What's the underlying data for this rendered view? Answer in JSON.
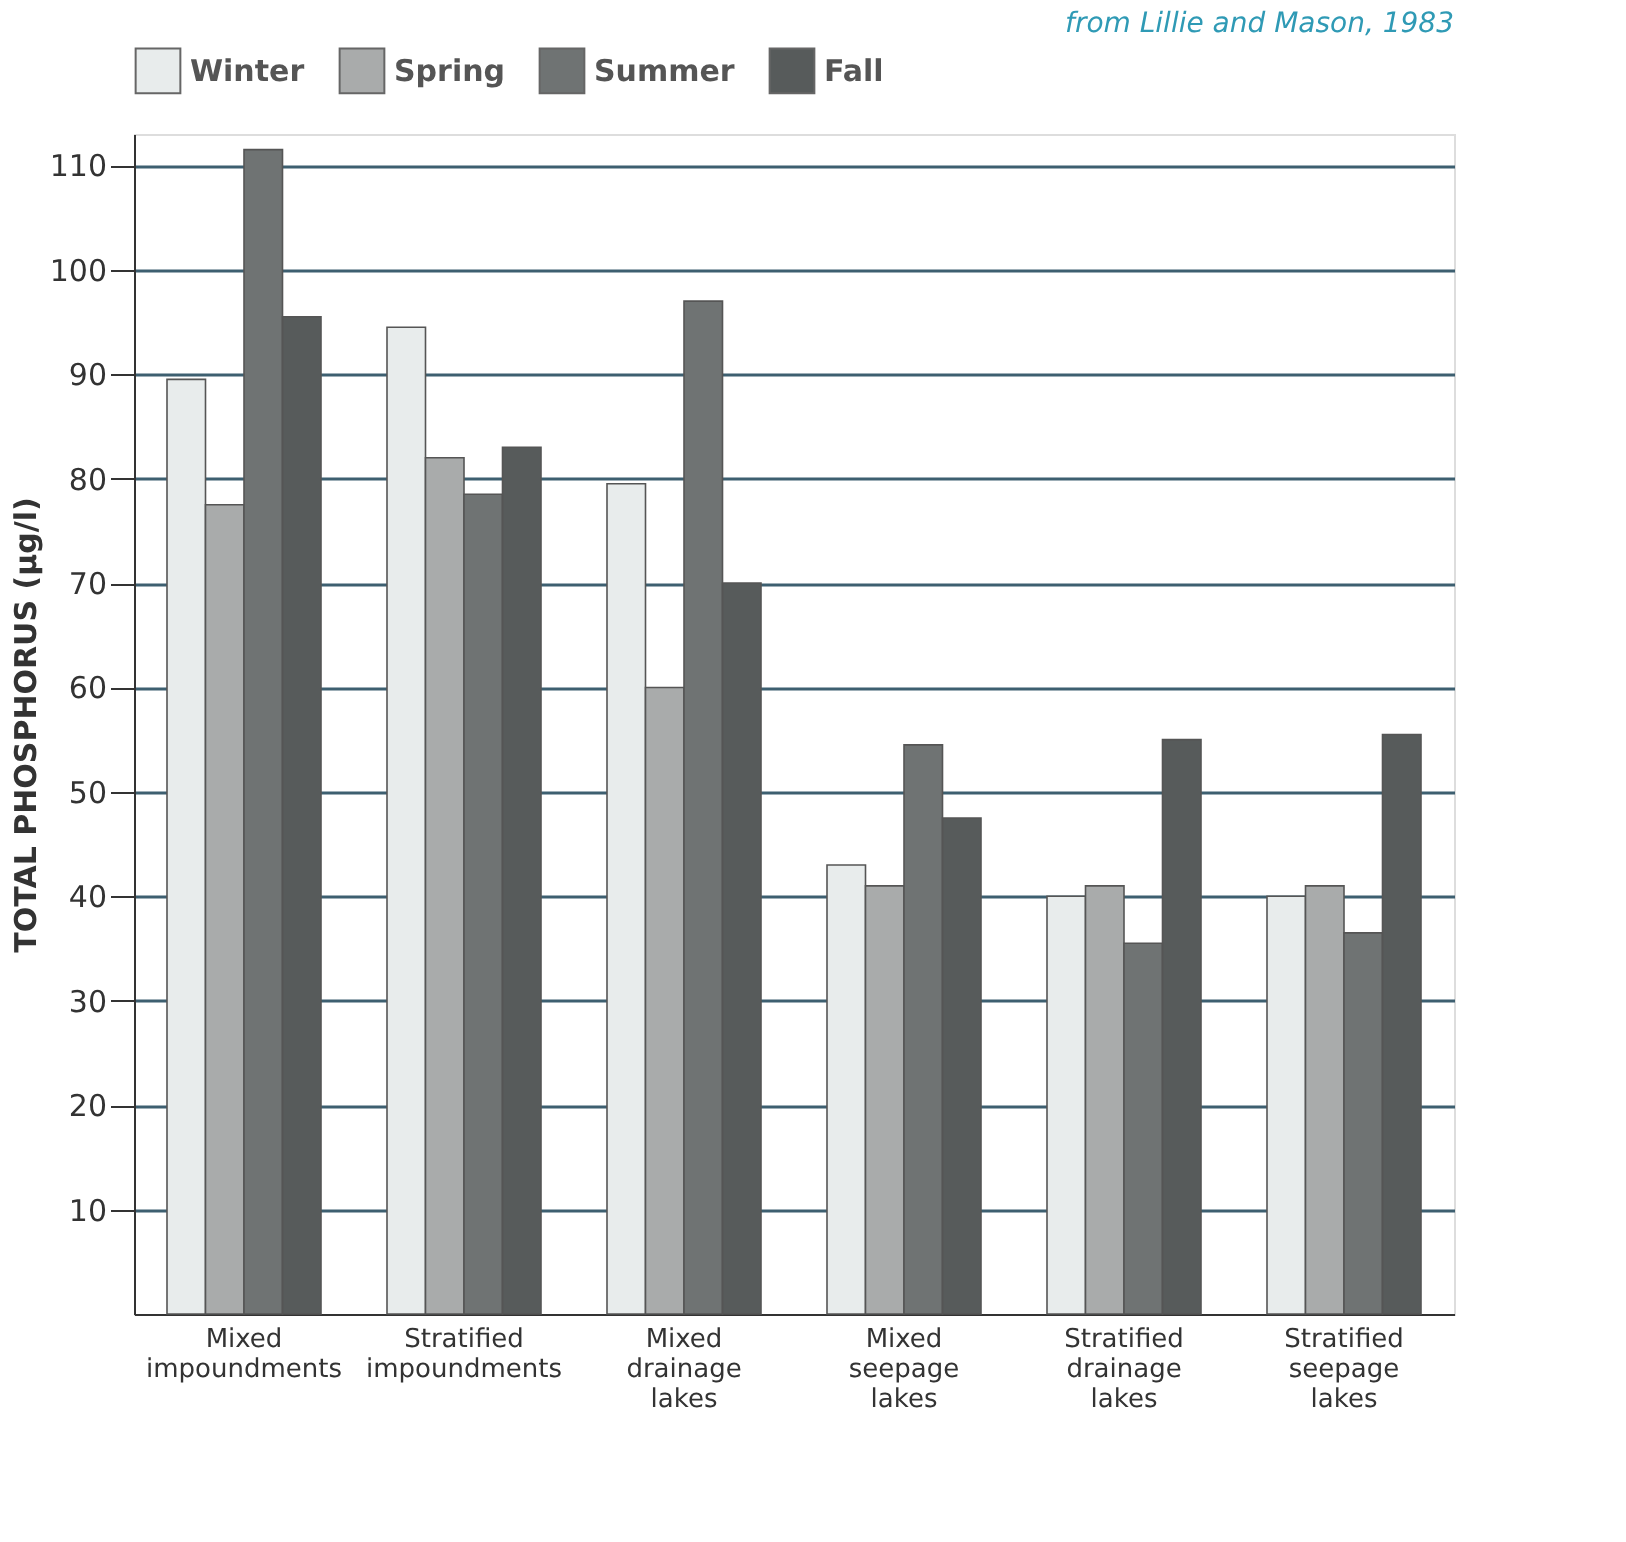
{
  "chart_data": {
    "type": "bar",
    "categories": [
      "Mixed impoundments",
      "Stratified impoundments",
      "Mixed drainage lakes",
      "Mixed seepage lakes",
      "Stratified drainage lakes",
      "Stratified seepage lakes"
    ],
    "series": [
      {
        "name": "Winter",
        "color": "#e8ecec",
        "values": [
          89.5,
          94.5,
          79.5,
          43,
          40,
          40
        ]
      },
      {
        "name": "Spring",
        "color": "#a9abab",
        "values": [
          77.5,
          82,
          60,
          41,
          41,
          41
        ]
      },
      {
        "name": "Summer",
        "color": "#6f7373",
        "values": [
          111.5,
          78.5,
          97,
          54.5,
          35.5,
          36.5
        ]
      },
      {
        "name": "Fall",
        "color": "#575b5b",
        "values": [
          95.5,
          83,
          70,
          47.5,
          55,
          55.5
        ]
      }
    ],
    "ylabel": "TOTAL PHOSPHORUS (µg/l)",
    "ylim": [
      0,
      113
    ],
    "yticks": [
      10,
      20,
      30,
      40,
      50,
      60,
      70,
      80,
      90,
      100,
      110
    ],
    "grid": "y",
    "legend": "top",
    "annotations": [
      "from Lillie and Mason, 1983"
    ]
  }
}
